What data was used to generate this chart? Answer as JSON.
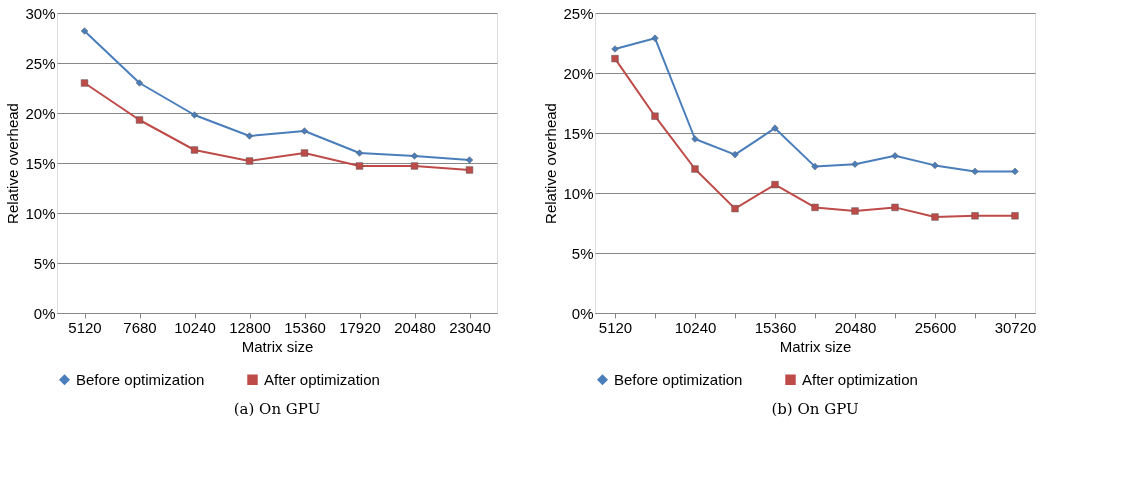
{
  "chart_data": [
    {
      "type": "line",
      "xlabel": "Matrix size",
      "ylabel": "Relative overhead",
      "annotations": [
        "(a) On GPU"
      ],
      "categories": [
        "5120",
        "7680",
        "10240",
        "12800",
        "15360",
        "17920",
        "20480",
        "23040"
      ],
      "series": [
        {
          "name": "Before optimization",
          "color": "#4a7ebb",
          "marker": "diamond",
          "values": [
            28.2,
            23.0,
            19.8,
            17.7,
            18.2,
            16.0,
            15.7,
            15.3
          ]
        },
        {
          "name": "After optimization",
          "color": "#be4b48",
          "marker": "square",
          "values": [
            23.0,
            19.3,
            16.3,
            15.2,
            16.0,
            14.7,
            14.7,
            14.3
          ]
        }
      ],
      "ylim": [
        0,
        30
      ],
      "yticks": [
        {
          "value": 0,
          "label": "0%"
        },
        {
          "value": 5,
          "label": "5%"
        },
        {
          "value": 10,
          "label": "10%"
        },
        {
          "value": 15,
          "label": "15%"
        },
        {
          "value": 20,
          "label": "20%"
        },
        {
          "value": 25,
          "label": "25%"
        },
        {
          "value": 30,
          "label": "30%"
        }
      ],
      "grid": "y",
      "legend": "bottom"
    },
    {
      "type": "line",
      "xlabel": "Matrix size",
      "ylabel": "Relative overhead",
      "annotations": [
        "(b) On GPU"
      ],
      "categories": [
        "5120",
        null,
        "10240",
        null,
        "15360",
        null,
        "20480",
        null,
        "25600",
        null,
        "30720"
      ],
      "series": [
        {
          "name": "Before optimization",
          "color": "#4a7ebb",
          "marker": "diamond",
          "values": [
            22.0,
            22.9,
            14.5,
            13.2,
            15.4,
            12.2,
            12.4,
            13.1,
            12.3,
            11.8,
            11.8
          ]
        },
        {
          "name": "After optimization",
          "color": "#be4b48",
          "marker": "square",
          "values": [
            21.2,
            16.4,
            12.0,
            8.7,
            10.7,
            8.8,
            8.5,
            8.8,
            8.0,
            8.1,
            8.1
          ]
        }
      ],
      "ylim": [
        0,
        25
      ],
      "yticks": [
        {
          "value": 0,
          "label": "0%"
        },
        {
          "value": 5,
          "label": "5%"
        },
        {
          "value": 10,
          "label": "10%"
        },
        {
          "value": 15,
          "label": "15%"
        },
        {
          "value": 20,
          "label": "20%"
        },
        {
          "value": 25,
          "label": "25%"
        }
      ],
      "grid": "y",
      "legend": "bottom"
    }
  ]
}
